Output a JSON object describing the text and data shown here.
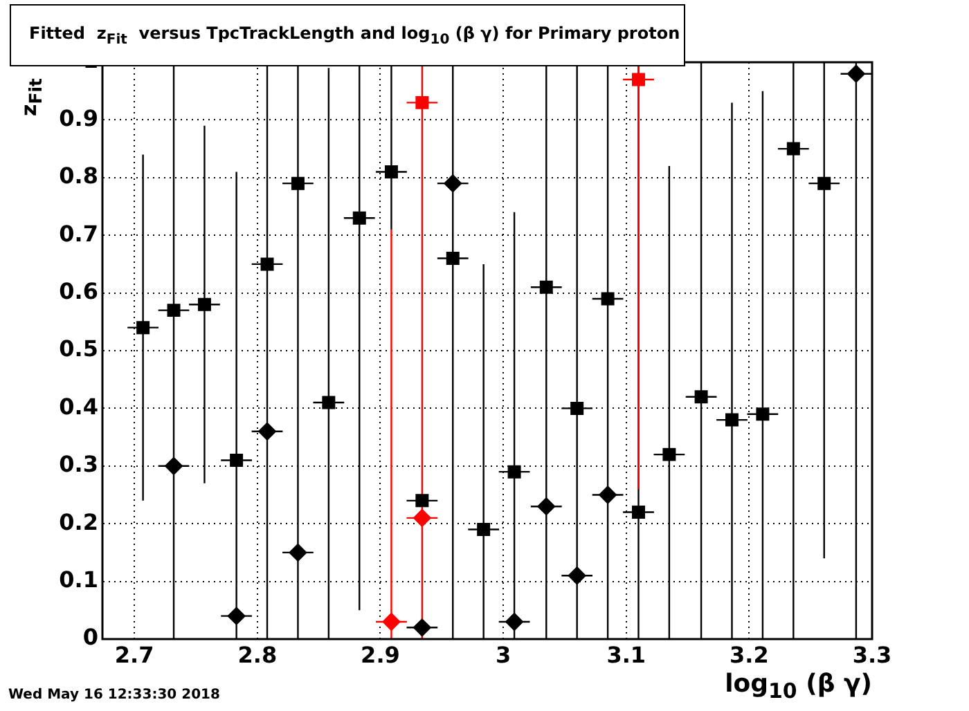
{
  "chart_data": {
    "type": "scatter",
    "title": "Fitted  z$_{Fit}$  versus TpcTrackLength and log$_{10}$ (β γ) for Primary proton",
    "xlabel": "log$_{10}$ (β γ)",
    "ylabel": "z$_{Fit}$",
    "annotations": [
      "Wed May 16 12:33:30 2018"
    ],
    "xlim": [
      2.674,
      3.3
    ],
    "xticks": [
      2.7,
      2.8,
      2.9,
      3,
      3.1,
      3.2,
      3.3
    ],
    "ylim": [
      0,
      1
    ],
    "yticks": [
      0,
      0.1,
      0.2,
      0.3,
      0.4,
      0.5,
      0.6,
      0.7,
      0.8,
      0.9,
      1
    ],
    "grid": true,
    "legend": false,
    "series": [
      {
        "color": "#000000",
        "marker": "square",
        "x": [
          2.707,
          2.732,
          2.757,
          2.783,
          2.808,
          2.833,
          2.858,
          2.883,
          2.909,
          2.934,
          2.959,
          2.984,
          3.009,
          3.035,
          3.06,
          3.085,
          3.11,
          3.135,
          3.161,
          3.186,
          3.211,
          3.236,
          3.261
        ],
        "values": [
          0.54,
          0.57,
          0.58,
          0.31,
          0.65,
          0.79,
          0.41,
          0.73,
          0.81,
          0.24,
          0.66,
          0.19,
          0.29,
          0.61,
          0.4,
          0.59,
          0.22,
          0.32,
          0.42,
          0.38,
          0.39,
          0.85,
          0.79
        ],
        "errors": [
          [
            0.24,
            0.84
          ],
          [
            0,
            1
          ],
          [
            0.27,
            0.89
          ],
          [
            0,
            0.81
          ],
          [
            0,
            1
          ],
          [
            0,
            1
          ],
          [
            0,
            0.99
          ],
          [
            0.05,
            1
          ],
          [
            0.71,
            1
          ],
          null,
          [
            0,
            1
          ],
          [
            0,
            0.65
          ],
          [
            0,
            0.74
          ],
          [
            0,
            1
          ],
          [
            0,
            1
          ],
          [
            0,
            1
          ],
          [
            0,
            1
          ],
          [
            0,
            0.82
          ],
          [
            0,
            1
          ],
          [
            0,
            0.93
          ],
          [
            0,
            0.95
          ],
          [
            0,
            1
          ],
          [
            0.14,
            1
          ]
        ],
        "xerrors": [
          0.0126,
          0.0126,
          0.0126,
          0.0126,
          0.0126,
          0.0126,
          0.0126,
          0.0126,
          0.0126,
          0.0126,
          0.0126,
          0.0126,
          0.0126,
          0.0126,
          0.0126,
          0.0126,
          0.0126,
          0.0126,
          0.0126,
          0.0126,
          0.0126,
          0.0126,
          0.0126
        ]
      },
      {
        "color": "#000000",
        "marker": "diamond",
        "x": [
          2.732,
          2.783,
          2.808,
          2.833,
          2.934,
          2.959,
          3.009,
          3.035,
          3.06,
          3.085,
          3.287
        ],
        "values": [
          0.3,
          0.04,
          0.36,
          0.15,
          0.02,
          0.79,
          0.03,
          0.23,
          0.11,
          0.25,
          0.98
        ],
        "errors": [
          null,
          null,
          null,
          null,
          null,
          null,
          null,
          null,
          null,
          null,
          [
            0,
            1
          ]
        ],
        "xerrors": [
          0.0126,
          0.0126,
          0.0126,
          0.0126,
          0.0126,
          0.0126,
          0.0126,
          0.0126,
          0.0126,
          0.0126,
          0.0126
        ]
      },
      {
        "color": "#ff0000",
        "marker": "square",
        "x": [
          2.934,
          3.11
        ],
        "values": [
          0.93,
          0.97
        ],
        "errors": [
          [
            0,
            1
          ],
          [
            0.26,
            1
          ]
        ],
        "xerrors": [
          0.0126,
          0.0126
        ]
      },
      {
        "color": "#ff0000",
        "marker": "diamond",
        "x": [
          2.909,
          2.934
        ],
        "values": [
          0.03,
          0.21
        ],
        "errors": [
          [
            0,
            0.71
          ],
          null
        ],
        "xerrors": [
          0.0126,
          0.0126
        ]
      }
    ]
  }
}
